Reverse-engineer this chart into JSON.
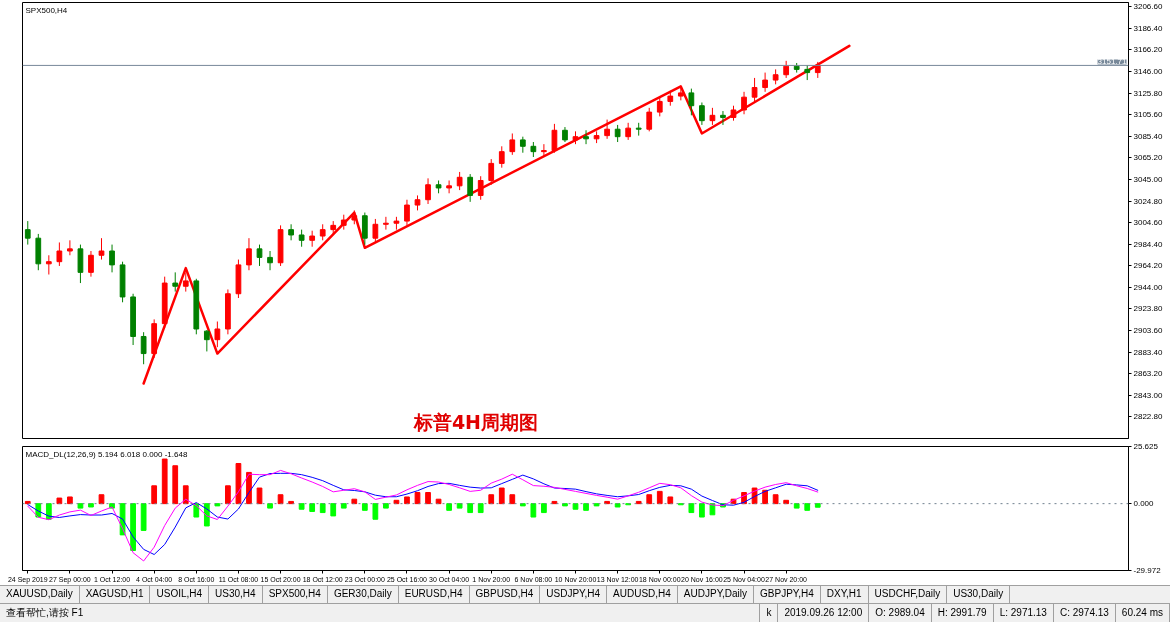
{
  "chart_data": [
    {
      "type": "candlestick",
      "title": "SPX500,H4",
      "categories": [
        null,
        null,
        null,
        null,
        null,
        null,
        null,
        null,
        null,
        null,
        null,
        null,
        null,
        null,
        null,
        null,
        null,
        null,
        null,
        null,
        null,
        null,
        null,
        null,
        null,
        null,
        null,
        null,
        null,
        null,
        null,
        null,
        null,
        null,
        null,
        null,
        null,
        null,
        null,
        null,
        null,
        null,
        null,
        null,
        null,
        null,
        null,
        null,
        null,
        null,
        null,
        null,
        null,
        null,
        null,
        null,
        null,
        null,
        null,
        null,
        null,
        null,
        null,
        null,
        null,
        null,
        null,
        null,
        null,
        null,
        null,
        null,
        null,
        null,
        null,
        null,
        null,
        null,
        null,
        null,
        null,
        null,
        null,
        null,
        null,
        null,
        null,
        null,
        null,
        null,
        null,
        null,
        null,
        null,
        null,
        null,
        null,
        null,
        null,
        null,
        null,
        null,
        null,
        null,
        null
      ],
      "ohlc": [
        [
          2998,
          3006,
          2984,
          2990
        ],
        [
          2990,
          2994,
          2960,
          2966
        ],
        [
          2966,
          2974,
          2956,
          2968
        ],
        [
          2968,
          2986,
          2964,
          2978
        ],
        [
          2978,
          2988,
          2974,
          2980
        ],
        [
          2980,
          2984,
          2948,
          2958
        ],
        [
          2958,
          2978,
          2954,
          2974
        ],
        [
          2974,
          2990,
          2970,
          2978
        ],
        [
          2978,
          2984,
          2958,
          2965
        ],
        [
          2965,
          2968,
          2930,
          2935
        ],
        [
          2935,
          2938,
          2890,
          2898
        ],
        [
          2898,
          2902,
          2872,
          2882
        ],
        [
          2882,
          2914,
          2878,
          2910
        ],
        [
          2910,
          2954,
          2906,
          2948
        ],
        [
          2948,
          2958,
          2940,
          2945
        ],
        [
          2945,
          2958,
          2940,
          2950
        ],
        [
          2950,
          2952,
          2900,
          2905
        ],
        [
          2903,
          2904,
          2884,
          2895
        ],
        [
          2895,
          2912,
          2888,
          2905
        ],
        [
          2905,
          2942,
          2900,
          2938
        ],
        [
          2938,
          2970,
          2934,
          2965
        ],
        [
          2965,
          2990,
          2960,
          2980
        ],
        [
          2980,
          2984,
          2964,
          2972
        ],
        [
          2972,
          2978,
          2960,
          2967
        ],
        [
          2967,
          3002,
          2964,
          2998
        ],
        [
          2998,
          3003,
          2988,
          2993
        ],
        [
          2993,
          2998,
          2982,
          2988
        ],
        [
          2988,
          2997,
          2982,
          2992
        ],
        [
          2992,
          3003,
          2988,
          2998
        ],
        [
          2998,
          3006,
          2994,
          3002
        ],
        [
          3002,
          3012,
          2998,
          3007
        ],
        [
          3007,
          3016,
          3003,
          3011
        ],
        [
          3011,
          3014,
          2984,
          2990
        ],
        [
          2990,
          3008,
          2986,
          3003
        ],
        [
          3003,
          3010,
          2998,
          3004
        ],
        [
          3004,
          3010,
          2998,
          3006
        ],
        [
          3006,
          3026,
          3002,
          3021
        ],
        [
          3021,
          3030,
          3016,
          3026
        ],
        [
          3026,
          3046,
          3022,
          3040
        ],
        [
          3040,
          3044,
          3032,
          3037
        ],
        [
          3037,
          3044,
          3032,
          3039
        ],
        [
          3039,
          3052,
          3035,
          3047
        ],
        [
          3047,
          3050,
          3024,
          3030
        ],
        [
          3030,
          3048,
          3026,
          3044
        ],
        [
          3044,
          3064,
          3040,
          3060
        ],
        [
          3060,
          3076,
          3056,
          3071
        ],
        [
          3071,
          3088,
          3068,
          3082
        ],
        [
          3082,
          3085,
          3070,
          3076
        ],
        [
          3076,
          3080,
          3066,
          3071
        ],
        [
          3071,
          3078,
          3066,
          3072
        ],
        [
          3072,
          3097,
          3070,
          3091
        ],
        [
          3091,
          3094,
          3080,
          3082
        ],
        [
          3082,
          3090,
          3078,
          3085
        ],
        [
          3085,
          3091,
          3078,
          3083
        ],
        [
          3083,
          3090,
          3079,
          3086
        ],
        [
          3086,
          3101,
          3083,
          3092
        ],
        [
          3092,
          3096,
          3080,
          3085
        ],
        [
          3085,
          3098,
          3082,
          3093
        ],
        [
          3093,
          3098,
          3086,
          3092
        ],
        [
          3092,
          3112,
          3090,
          3108
        ],
        [
          3108,
          3122,
          3104,
          3118
        ],
        [
          3118,
          3128,
          3114,
          3123
        ],
        [
          3123,
          3133,
          3119,
          3126
        ],
        [
          3126,
          3130,
          3105,
          3114
        ],
        [
          3114,
          3117,
          3096,
          3100
        ],
        [
          3100,
          3112,
          3096,
          3105
        ],
        [
          3105,
          3109,
          3096,
          3103
        ],
        [
          3103,
          3114,
          3100,
          3110
        ],
        [
          3110,
          3127,
          3106,
          3122
        ],
        [
          3122,
          3140,
          3118,
          3131
        ],
        [
          3131,
          3145,
          3127,
          3138
        ],
        [
          3138,
          3148,
          3134,
          3143
        ],
        [
          3143,
          3156,
          3140,
          3151
        ],
        [
          3151,
          3154,
          3145,
          3148
        ],
        [
          3148,
          3152,
          3138,
          3145
        ],
        [
          3145,
          3155,
          3140,
          3151.71
        ],
        null,
        null,
        null,
        null,
        null,
        null,
        null,
        null,
        null,
        null,
        null,
        null,
        null,
        null,
        null,
        null,
        null,
        null,
        null,
        null,
        null,
        null,
        null,
        null,
        null,
        null,
        null,
        null,
        null
      ],
      "colors": [
        "#008000",
        "#008000",
        "#ff0000",
        "#ff0000",
        "#ff0000",
        "#008000",
        "#ff0000",
        "#ff0000",
        "#008000",
        "#008000",
        "#008000",
        "#008000",
        "#ff0000",
        "#ff0000",
        "#008000",
        "#ff0000",
        "#008000",
        "#008000",
        "#ff0000",
        "#ff0000",
        "#ff0000",
        "#ff0000",
        "#008000",
        "#008000",
        "#ff0000",
        "#008000",
        "#008000",
        "#ff0000",
        "#ff0000",
        "#ff0000",
        "#ff0000",
        "#ff0000",
        "#008000",
        "#ff0000",
        "#ff0000",
        "#ff0000",
        "#ff0000",
        "#ff0000",
        "#ff0000",
        "#008000",
        "#ff0000",
        "#ff0000",
        "#008000",
        "#ff0000",
        "#ff0000",
        "#ff0000",
        "#ff0000",
        "#008000",
        "#008000",
        "#ff0000",
        "#ff0000",
        "#008000",
        "#ff0000",
        "#008000",
        "#ff0000",
        "#ff0000",
        "#008000",
        "#ff0000",
        "#008000",
        "#ff0000",
        "#ff0000",
        "#ff0000",
        "#ff0000",
        "#008000",
        "#008000",
        "#ff0000",
        "#008000",
        "#ff0000",
        "#ff0000",
        "#ff0000",
        "#ff0000",
        "#ff0000",
        "#ff0000",
        "#008000",
        "#008000",
        "#ff0000",
        null,
        null,
        null,
        null,
        null,
        null,
        null,
        null,
        null,
        null,
        null,
        null,
        null,
        null,
        null,
        null,
        null,
        null,
        null,
        null,
        null,
        null,
        null,
        null,
        null,
        null,
        null,
        null,
        null
      ],
      "series": [
        {
          "type": "line",
          "color": "#ff0000",
          "values": [
            null,
            null,
            null,
            null,
            null,
            null,
            null,
            null,
            null,
            null,
            null,
            2854,
            null,
            null,
            null,
            2962,
            null,
            null,
            2882,
            null,
            null,
            null,
            null,
            null,
            null,
            null,
            null,
            null,
            null,
            null,
            null,
            3014,
            2981,
            null,
            null,
            null,
            null,
            null,
            null,
            null,
            null,
            null,
            null,
            null,
            null,
            null,
            null,
            null,
            null,
            null,
            null,
            null,
            null,
            null,
            null,
            null,
            null,
            null,
            null,
            null,
            null,
            null,
            3132,
            null,
            3088,
            null,
            null,
            null,
            null,
            null,
            null,
            null,
            null,
            null,
            null,
            null,
            null,
            null,
            3170,
            null,
            null,
            null,
            null,
            null,
            null,
            null,
            null,
            null,
            null,
            null,
            null,
            null,
            null,
            null,
            null,
            null,
            null,
            null,
            null,
            null,
            null,
            null,
            null,
            null,
            null
          ]
        }
      ],
      "ylim": [
        2802.5,
        3210.6
      ],
      "yticks": [
        {
          "value": 3206.6,
          "label": "3206.60"
        },
        {
          "value": 3186.4,
          "label": "3186.40"
        },
        {
          "value": 3166.2,
          "label": "3166.20"
        },
        {
          "value": 3146,
          "label": "3146.00"
        },
        {
          "value": 3125.8,
          "label": "3125.80"
        },
        {
          "value": 3105.6,
          "label": "3105.60"
        },
        {
          "value": 3085.4,
          "label": "3085.40"
        },
        {
          "value": 3065.2,
          "label": "3065.20"
        },
        {
          "value": 3045,
          "label": "3045.00"
        },
        {
          "value": 3024.8,
          "label": "3024.80"
        },
        {
          "value": 3004.6,
          "label": "3004.60"
        },
        {
          "value": 2984.4,
          "label": "2984.40"
        },
        {
          "value": 2964.2,
          "label": "2964.20"
        },
        {
          "value": 2944,
          "label": "2944.00"
        },
        {
          "value": 2923.8,
          "label": "2923.80"
        },
        {
          "value": 2903.6,
          "label": "2903.60"
        },
        {
          "value": 2883.4,
          "label": "2883.40"
        },
        {
          "value": 2863.2,
          "label": "2863.20"
        },
        {
          "value": 2843,
          "label": "2843.00"
        },
        {
          "value": 2822.8,
          "label": "2822.80"
        }
      ],
      "tick_labels": "y",
      "ref_lines": [
        {
          "axis": "y",
          "value": 3151.71,
          "label": "3151.71",
          "color": "#778899"
        }
      ],
      "annotations": [
        "标普4H周期图"
      ]
    },
    {
      "type": "bar",
      "title": "MACD_DL(12,26,9) 5.194 6.018 0.000 -1.648",
      "categories": [
        "24 Sep 2019",
        null,
        null,
        null,
        "27 Sep 00:00",
        null,
        null,
        null,
        "1 Oct 12:00",
        null,
        null,
        null,
        "4 Oct 04:00",
        null,
        null,
        null,
        "8 Oct 16:00",
        null,
        null,
        null,
        "11 Oct 08:00",
        null,
        null,
        null,
        "15 Oct 20:00",
        null,
        null,
        null,
        "18 Oct 12:00",
        null,
        null,
        null,
        "23 Oct 00:00",
        null,
        null,
        null,
        "25 Oct 16:00",
        null,
        null,
        null,
        "30 Oct 04:00",
        null,
        null,
        null,
        "1 Nov 20:00",
        null,
        null,
        null,
        "6 Nov 08:00",
        null,
        null,
        null,
        "10 Nov 20:00",
        null,
        null,
        null,
        "13 Nov 12:00",
        null,
        null,
        null,
        "18 Nov 00:00",
        null,
        null,
        null,
        "20 Nov 16:00",
        null,
        null,
        null,
        "25 Nov 04:00",
        null,
        null,
        null,
        "27 Nov 20:00",
        null,
        null,
        null,
        null,
        null,
        null,
        null,
        null,
        null,
        null,
        null,
        null,
        null,
        null,
        null,
        null,
        null,
        null,
        null,
        null,
        null,
        null,
        null,
        null,
        null,
        null,
        null,
        null,
        null,
        null,
        null,
        null
      ],
      "series": [
        {
          "type": "bar",
          "values": [
            1,
            -6,
            -7,
            2.5,
            3,
            -2,
            -1.5,
            4,
            -2,
            -14,
            -21,
            -12,
            8,
            20,
            17,
            8,
            -6,
            -10,
            -1,
            8,
            18,
            14,
            7,
            -2,
            4,
            1,
            -2.5,
            -3.5,
            -4,
            -5.5,
            -2,
            2,
            -3,
            -7,
            -2,
            1.5,
            3,
            5,
            5,
            2,
            -3,
            -2,
            -4,
            -4,
            4,
            7,
            4,
            -1,
            -6,
            -4,
            1,
            -1,
            -2.5,
            -3,
            -1,
            1,
            -1.5,
            -0.5,
            1,
            4,
            5.5,
            3,
            -0.5,
            -4,
            -6,
            -5,
            -1.5,
            2,
            5,
            7,
            6,
            4,
            1.5,
            -2,
            -3,
            -1.6,
            null,
            null,
            null,
            null,
            null,
            null,
            null,
            null,
            null,
            null,
            null,
            null,
            null,
            null,
            null,
            null,
            null,
            null,
            null,
            null,
            null,
            null,
            null,
            null,
            null,
            null,
            null,
            null,
            null
          ],
          "colors": [
            "#ff0000",
            "#00ff00",
            "#00ff00",
            "#ff0000",
            "#ff0000",
            "#00ff00",
            "#00ff00",
            "#ff0000",
            "#00ff00",
            "#00ff00",
            "#00ff00",
            "#00ff00",
            "#ff0000",
            "#ff0000",
            "#ff0000",
            "#ff0000",
            "#00ff00",
            "#00ff00",
            "#00ff00",
            "#ff0000",
            "#ff0000",
            "#ff0000",
            "#ff0000",
            "#00ff00",
            "#ff0000",
            "#ff0000",
            "#00ff00",
            "#00ff00",
            "#00ff00",
            "#00ff00",
            "#00ff00",
            "#ff0000",
            "#00ff00",
            "#00ff00",
            "#00ff00",
            "#ff0000",
            "#ff0000",
            "#ff0000",
            "#ff0000",
            "#ff0000",
            "#00ff00",
            "#00ff00",
            "#00ff00",
            "#00ff00",
            "#ff0000",
            "#ff0000",
            "#ff0000",
            "#00ff00",
            "#00ff00",
            "#00ff00",
            "#ff0000",
            "#00ff00",
            "#00ff00",
            "#00ff00",
            "#00ff00",
            "#ff0000",
            "#00ff00",
            "#00ff00",
            "#ff0000",
            "#ff0000",
            "#ff0000",
            "#ff0000",
            "#00ff00",
            "#00ff00",
            "#00ff00",
            "#00ff00",
            "#00ff00",
            "#ff0000",
            "#ff0000",
            "#ff0000",
            "#ff0000",
            "#ff0000",
            "#ff0000",
            "#00ff00",
            "#00ff00",
            "#00ff00",
            null,
            null,
            null,
            null,
            null,
            null,
            null,
            null,
            null,
            null,
            null,
            null,
            null,
            null,
            null,
            null,
            null,
            null,
            null,
            null,
            null,
            null,
            null,
            null,
            null,
            null,
            null,
            null,
            null
          ]
        },
        {
          "type": "line",
          "color": "#0000ff",
          "values": [
            -0.4,
            -3.3,
            -5.6,
            -6.2,
            -5.5,
            -4.9,
            -5.1,
            -5.1,
            -4.4,
            -6.9,
            -14.9,
            -20.5,
            -22.8,
            -18.3,
            -10.5,
            -1.9,
            0.5,
            -2.4,
            -6,
            -6.9,
            -2.4,
            5,
            11.9,
            13.5,
            13.6,
            13.6,
            13,
            11.8,
            10.3,
            8.2,
            6.2,
            5.9,
            5.3,
            3.8,
            3.1,
            3.1,
            4.3,
            5.8,
            7.7,
            9,
            9.1,
            8.2,
            7.4,
            7,
            7.1,
            9,
            10.9,
            12.8,
            11.1,
            8.9,
            7,
            6.8,
            6.5,
            5.4,
            4.4,
            3.7,
            3.1,
            3.5,
            4.1,
            5.8,
            7.3,
            8.2,
            8,
            6.5,
            3.4,
            1.4,
            -0.5,
            -0.7,
            0.6,
            3.2,
            5.5,
            7.1,
            8.7,
            8.4,
            8,
            6.0,
            null,
            null,
            null,
            null,
            null,
            null,
            null,
            null,
            null,
            null,
            null,
            null,
            null,
            null,
            null,
            null,
            null,
            null,
            null,
            null,
            null,
            null,
            null,
            null,
            null,
            null,
            null,
            null,
            null
          ]
        },
        {
          "type": "line",
          "color": "#ff00ff",
          "values": [
            -1.1,
            -6.1,
            -7.2,
            -5.1,
            -3.7,
            -2.9,
            -5.3,
            -3.3,
            -1.5,
            -11.2,
            -22,
            -25.7,
            -19.5,
            -9.8,
            -2,
            2,
            -0.9,
            -5.5,
            -7.1,
            -1.1,
            5.3,
            13.2,
            13,
            13,
            14.9,
            13.4,
            11.5,
            9.7,
            7.7,
            5.3,
            6,
            6.7,
            5.3,
            1.9,
            2.9,
            3.9,
            6.2,
            8.2,
            9.9,
            9.7,
            8.6,
            7.1,
            5.5,
            6,
            9.2,
            11,
            13.2,
            10.7,
            8.1,
            7.8,
            7.3,
            6.4,
            5.5,
            4.6,
            3.7,
            2.9,
            2,
            3.5,
            5.1,
            7.1,
            9.1,
            8.5,
            7.1,
            3.6,
            0.7,
            -0.6,
            -0.9,
            1.5,
            3.5,
            5.6,
            7.4,
            8.6,
            9.4,
            8,
            6.8,
            5.2,
            null,
            null,
            null,
            null,
            null,
            null,
            null,
            null,
            null,
            null,
            null,
            null,
            null,
            null,
            null,
            null,
            null,
            null,
            null,
            null,
            null,
            null,
            null,
            null,
            null,
            null,
            null,
            null,
            null
          ]
        }
      ],
      "ylim": [
        -29.972,
        25.625
      ],
      "yticks": [
        {
          "value": 25.625,
          "label": "25.625"
        },
        {
          "value": 0,
          "label": "0.000"
        },
        {
          "value": -29.972,
          "label": "-29.972"
        }
      ],
      "ref_lines": [
        {
          "axis": "y",
          "value": 0,
          "color": "#708090",
          "line_style": "dotted"
        }
      ]
    },
    {
      "type": "other",
      "annotations": [
        "XAUUSD,Daily",
        "XAGUSD,H1",
        "USOIL,H4",
        "US30,H4",
        "SPX500,H4",
        "GER30,Daily",
        "EURUSD,H4",
        "GBPUSD,H4",
        "USDJPY,H4",
        "AUDUSD,H4",
        "AUDJPY,Daily",
        "GBPJPY,H4",
        "DXY,H1",
        "USDCHF,Daily",
        "US30,Daily"
      ]
    },
    {
      "type": "other",
      "annotations": [
        "查看帮忙,请按 F1",
        "k",
        "2019.09.26 12:00",
        "O: 2989.04",
        "H: 2991.79",
        "L: 2971.13",
        "C: 2974.13",
        "60.24 ms"
      ]
    }
  ]
}
